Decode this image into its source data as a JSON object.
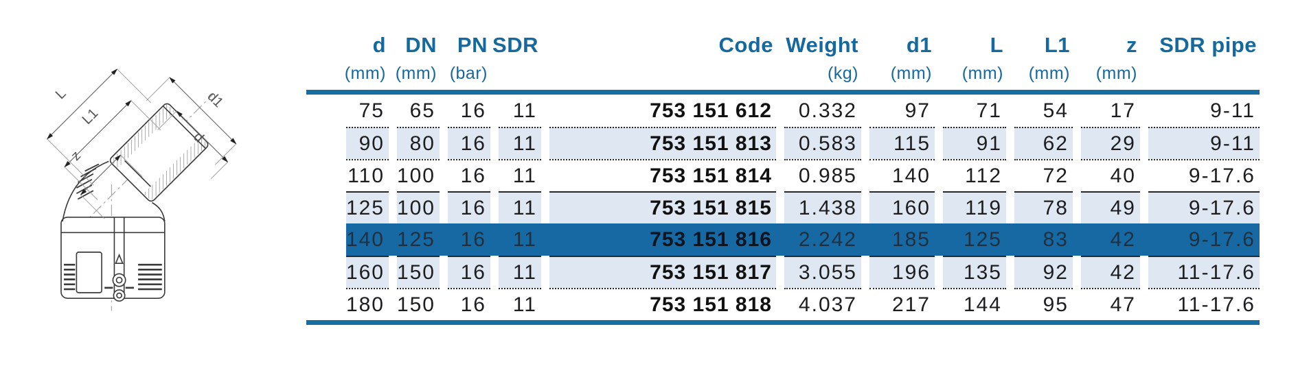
{
  "colors": {
    "header_blue": "#16699f",
    "rule_blue": "#186f9f",
    "shade": "#dfe8f2",
    "highlight_row": "#1769a4",
    "body_text": "#1d1d20"
  },
  "diagram": {
    "dim_labels": {
      "L": "L",
      "L1": "L1",
      "z": "z",
      "d1": "d1",
      "d": "d"
    }
  },
  "table": {
    "columns": [
      {
        "key": "d",
        "label": "d",
        "unit": "(mm)"
      },
      {
        "key": "dn",
        "label": "DN",
        "unit": "(mm)"
      },
      {
        "key": "pn",
        "label": "PN",
        "unit": "(bar)"
      },
      {
        "key": "sdr",
        "label": "SDR",
        "unit": ""
      },
      {
        "key": "code",
        "label": "Code",
        "unit": ""
      },
      {
        "key": "weight",
        "label": "Weight",
        "unit": "(kg)"
      },
      {
        "key": "d1",
        "label": "d1",
        "unit": "(mm)"
      },
      {
        "key": "l",
        "label": "L",
        "unit": "(mm)"
      },
      {
        "key": "l1",
        "label": "L1",
        "unit": "(mm)"
      },
      {
        "key": "z",
        "label": "z",
        "unit": "(mm)"
      },
      {
        "key": "sdr_pipe",
        "label": "SDR pipe",
        "unit": ""
      }
    ],
    "rows": [
      {
        "cells": [
          "75",
          "65",
          "16",
          "11",
          "753 151 612",
          "0.332",
          "97",
          "71",
          "54",
          "17",
          "9-11"
        ],
        "shaded": false,
        "highlighted": false,
        "separator": "none"
      },
      {
        "cells": [
          "90",
          "80",
          "16",
          "11",
          "753 151 813",
          "0.583",
          "115",
          "91",
          "62",
          "29",
          "9-11"
        ],
        "shaded": true,
        "highlighted": false,
        "separator": "dotted"
      },
      {
        "cells": [
          "110",
          "100",
          "16",
          "11",
          "753 151 814",
          "0.985",
          "140",
          "112",
          "72",
          "40",
          "9-17.6"
        ],
        "shaded": false,
        "highlighted": false,
        "separator": "dotted"
      },
      {
        "cells": [
          "125",
          "100",
          "16",
          "11",
          "753 151 815",
          "1.438",
          "160",
          "119",
          "78",
          "49",
          "9-17.6"
        ],
        "shaded": true,
        "highlighted": false,
        "separator": "solid"
      },
      {
        "cells": [
          "140",
          "125",
          "16",
          "11",
          "753 151 816",
          "2.242",
          "185",
          "125",
          "83",
          "42",
          "9-17.6"
        ],
        "shaded": false,
        "highlighted": true,
        "separator": "none"
      },
      {
        "cells": [
          "160",
          "150",
          "16",
          "11",
          "753 151 817",
          "3.055",
          "196",
          "135",
          "92",
          "42",
          "11-17.6"
        ],
        "shaded": true,
        "highlighted": false,
        "separator": "solid"
      },
      {
        "cells": [
          "180",
          "150",
          "16",
          "11",
          "753 151 818",
          "4.037",
          "217",
          "144",
          "95",
          "47",
          "11-17.6"
        ],
        "shaded": false,
        "highlighted": false,
        "separator": "dotted"
      }
    ]
  }
}
